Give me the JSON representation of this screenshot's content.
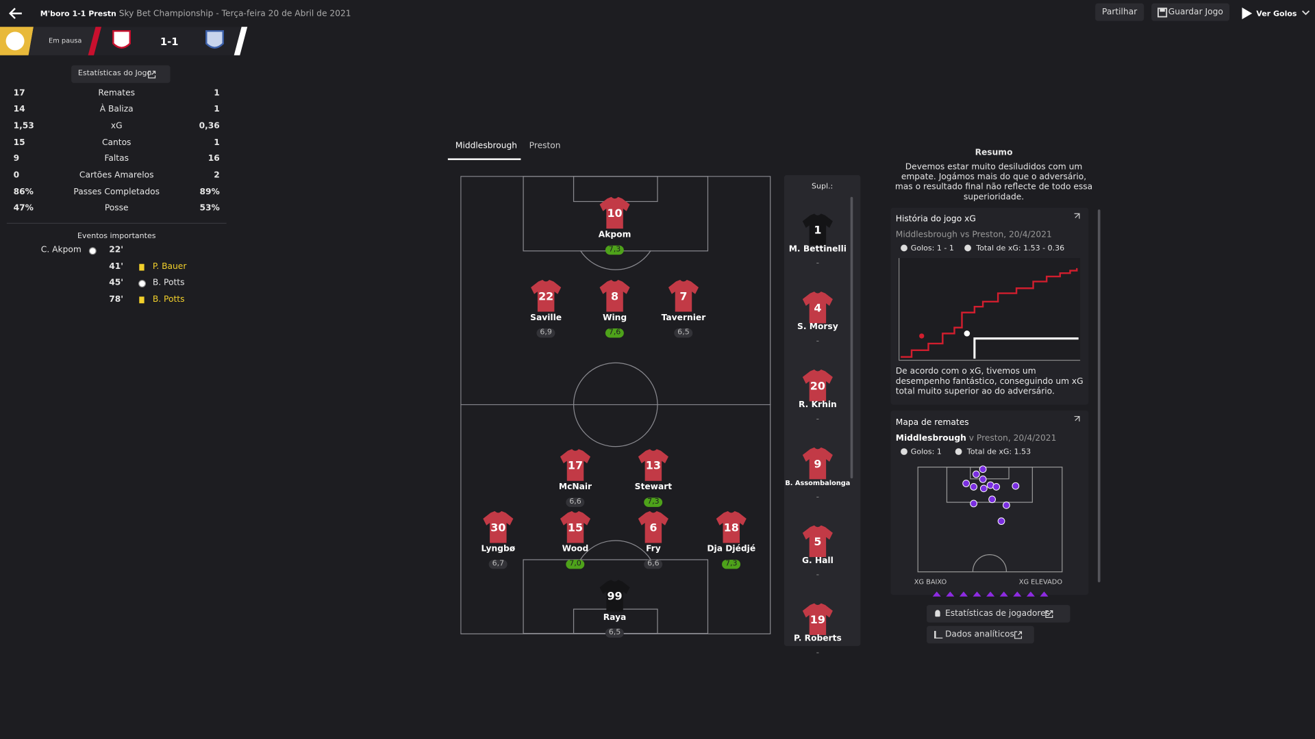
{
  "header": {
    "home_short": "M'boro",
    "score_short": "1-1",
    "away_short": "Prestn",
    "subtitle": "Sky Bet Championship - Terça-feira 20 de Abril de 2021",
    "status": "Em pausa",
    "score": "1-1",
    "actions": [
      "Partilhar",
      "Guardar Jogo",
      "Ver Golos"
    ]
  },
  "stats": {
    "button": "Estatísticas do Jogo",
    "rows": [
      {
        "home": "17",
        "label": "Remates",
        "away": "1"
      },
      {
        "home": "14",
        "label": "À Baliza",
        "away": "1"
      },
      {
        "home": "1,53",
        "label": "xG",
        "away": "0,36"
      },
      {
        "home": "15",
        "label": "Cantos",
        "away": "1"
      },
      {
        "home": "9",
        "label": "Faltas",
        "away": "16"
      },
      {
        "home": "0",
        "label": "Cartões Amarelos",
        "away": "2"
      },
      {
        "home": "86%",
        "label": "Passes Completados",
        "away": "89%"
      },
      {
        "home": "47%",
        "label": "Posse",
        "away": "53%"
      }
    ]
  },
  "events": {
    "title": "Eventos importantes",
    "items": [
      {
        "player": "C. Akpom",
        "minute": "22'",
        "side": "home",
        "kind": "goal"
      },
      {
        "player": "P. Bauer",
        "minute": "41'",
        "side": "away",
        "kind": "card"
      },
      {
        "player": "B. Potts",
        "minute": "45'",
        "side": "away",
        "kind": "goal"
      },
      {
        "player": "B. Potts",
        "minute": "78'",
        "side": "away",
        "kind": "card"
      }
    ]
  },
  "lineup": {
    "tabs": [
      "Middlesbrough",
      "Preston"
    ],
    "players": [
      {
        "number": "10",
        "name": "Akpom",
        "rating": "7,3",
        "highlight": true
      },
      {
        "number": "22",
        "name": "Saville",
        "rating": "6,9",
        "highlight": false
      },
      {
        "number": "8",
        "name": "Wing",
        "rating": "7,6",
        "highlight": true
      },
      {
        "number": "7",
        "name": "Tavernier",
        "rating": "6,5",
        "highlight": false
      },
      {
        "number": "17",
        "name": "McNair",
        "rating": "6,6",
        "highlight": false
      },
      {
        "number": "13",
        "name": "Stewart",
        "rating": "7,3",
        "highlight": true
      },
      {
        "number": "30",
        "name": "Lyngbø",
        "rating": "6,7",
        "highlight": false
      },
      {
        "number": "15",
        "name": "Wood",
        "rating": "7,0",
        "highlight": true
      },
      {
        "number": "6",
        "name": "Fry",
        "rating": "6,6",
        "highlight": false
      },
      {
        "number": "18",
        "name": "Dja Djédjé",
        "rating": "7,3",
        "highlight": true
      },
      {
        "number": "99",
        "name": "Raya",
        "rating": "6,5",
        "highlight": false,
        "keeper": true
      }
    ]
  },
  "subs": {
    "title": "Supl.:",
    "players": [
      {
        "number": "1",
        "name": "M. Bettinelli",
        "rating": "-",
        "keeper": true
      },
      {
        "number": "4",
        "name": "S. Morsy",
        "rating": "-"
      },
      {
        "number": "20",
        "name": "R. Krhin",
        "rating": "-"
      },
      {
        "number": "9",
        "name": "B. Assombalonga",
        "rating": "-"
      },
      {
        "number": "5",
        "name": "G. Hall",
        "rating": "-"
      },
      {
        "number": "19",
        "name": "P. Roberts",
        "rating": "-"
      }
    ]
  },
  "summary": {
    "title": "Resumo",
    "text": "Devemos estar muito desiludidos com um empate. Jogámos mais do que o adversário, mas o resultado final não reflecte de todo essa superioridade."
  },
  "xg_panel": {
    "title": "História do jogo xG",
    "subtitle": "Middlesbrough vs Preston, 20/4/2021",
    "goals": "Golos: 1 - 1",
    "total": "Total de xG: 1.53 - 0.36",
    "text": "De acordo com o xG, tivemos um desempenho fantástico, conseguindo um xG total muito superior ao do adversário."
  },
  "shot_map": {
    "title": "Mapa de remates",
    "team": "Middlesbrough",
    "subtitle": "v Preston, 20/4/2021",
    "goals": "Golos: 1",
    "total": "Total de xG: 1.53",
    "low": "XG BAIXO",
    "high": "XG ELEVADO"
  },
  "buttons": [
    "Estatísticas de jogadores",
    "Dados analíticos"
  ]
}
